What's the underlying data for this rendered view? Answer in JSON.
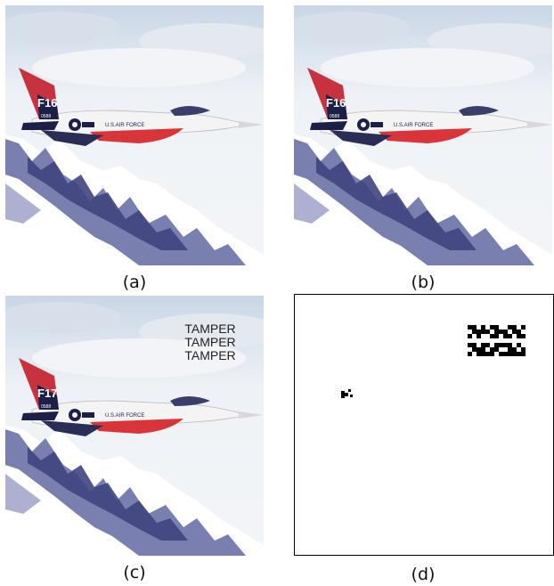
{
  "panels": [
    {
      "id": "a",
      "caption": "(a)",
      "tail_code": "F16",
      "serial": "0588",
      "fuselage_text": "U.S.AIR FORCE"
    },
    {
      "id": "b",
      "caption": "(b)",
      "tail_code": "F16",
      "serial": "0588",
      "fuselage_text": "U.S.AIR FORCE"
    },
    {
      "id": "c",
      "caption": "(c)",
      "tail_code": "F17",
      "serial": "0588",
      "fuselage_text": "U.S.AIR FORCE",
      "overlay_lines": [
        "TAMPER",
        "TAMPER",
        "TAMPER"
      ]
    },
    {
      "id": "d",
      "caption": "(d)"
    }
  ],
  "colors": {
    "sky": "#e9eef3",
    "mountain": "#5a5f96",
    "tail": "#c8323f",
    "jet_body": "#f4f4f4",
    "mask_pixel": "#000000"
  }
}
